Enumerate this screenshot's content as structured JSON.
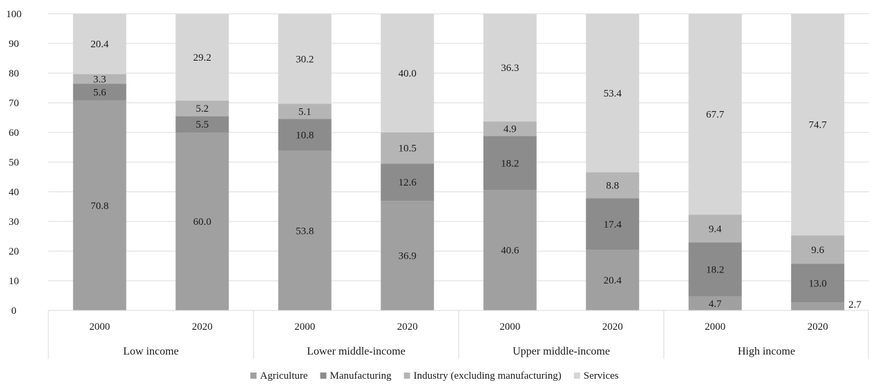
{
  "chart_data": {
    "type": "bar",
    "stacked": true,
    "ylim": [
      0,
      100
    ],
    "yticks": [
      0,
      10,
      20,
      30,
      40,
      50,
      60,
      70,
      80,
      90,
      100
    ],
    "grid": true,
    "legend_position": "bottom",
    "groups": [
      {
        "label": "Low income",
        "categories": [
          "2000",
          "2020"
        ]
      },
      {
        "label": "Lower middle-income",
        "categories": [
          "2000",
          "2020"
        ]
      },
      {
        "label": "Upper middle-income",
        "categories": [
          "2000",
          "2020"
        ]
      },
      {
        "label": "High income",
        "categories": [
          "2000",
          "2020"
        ]
      }
    ],
    "series": [
      {
        "name": "Agriculture",
        "color": "#a0a0a0",
        "values": [
          70.8,
          60.0,
          53.8,
          36.9,
          40.6,
          20.4,
          4.7,
          2.7
        ]
      },
      {
        "name": "Manufacturing",
        "color": "#8c8c8c",
        "values": [
          5.6,
          5.5,
          10.8,
          12.6,
          18.2,
          17.4,
          18.2,
          13.0
        ]
      },
      {
        "name": "Industry (excluding manufacturing)",
        "color": "#b5b5b5",
        "values": [
          3.3,
          5.2,
          5.1,
          10.5,
          4.9,
          8.8,
          9.4,
          9.6
        ]
      },
      {
        "name": "Services",
        "color": "#d6d6d6",
        "values": [
          20.4,
          29.2,
          30.2,
          40.0,
          36.3,
          53.4,
          67.7,
          74.7
        ]
      }
    ],
    "data_labels": [
      [
        "70.8",
        "60.0",
        "53.8",
        "36.9",
        "40.6",
        "20.4",
        "4.7",
        "2.7"
      ],
      [
        "5.6",
        "5.5",
        "10.8",
        "12.6",
        "18.2",
        "17.4",
        "18.2",
        "13.0"
      ],
      [
        "3.3",
        "5.2",
        "5.1",
        "10.5",
        "4.9",
        "8.8",
        "9.4",
        "9.6"
      ],
      [
        "20.4",
        "29.2",
        "30.2",
        "40.0",
        "36.3",
        "53.4",
        "67.7",
        "74.7"
      ]
    ]
  }
}
